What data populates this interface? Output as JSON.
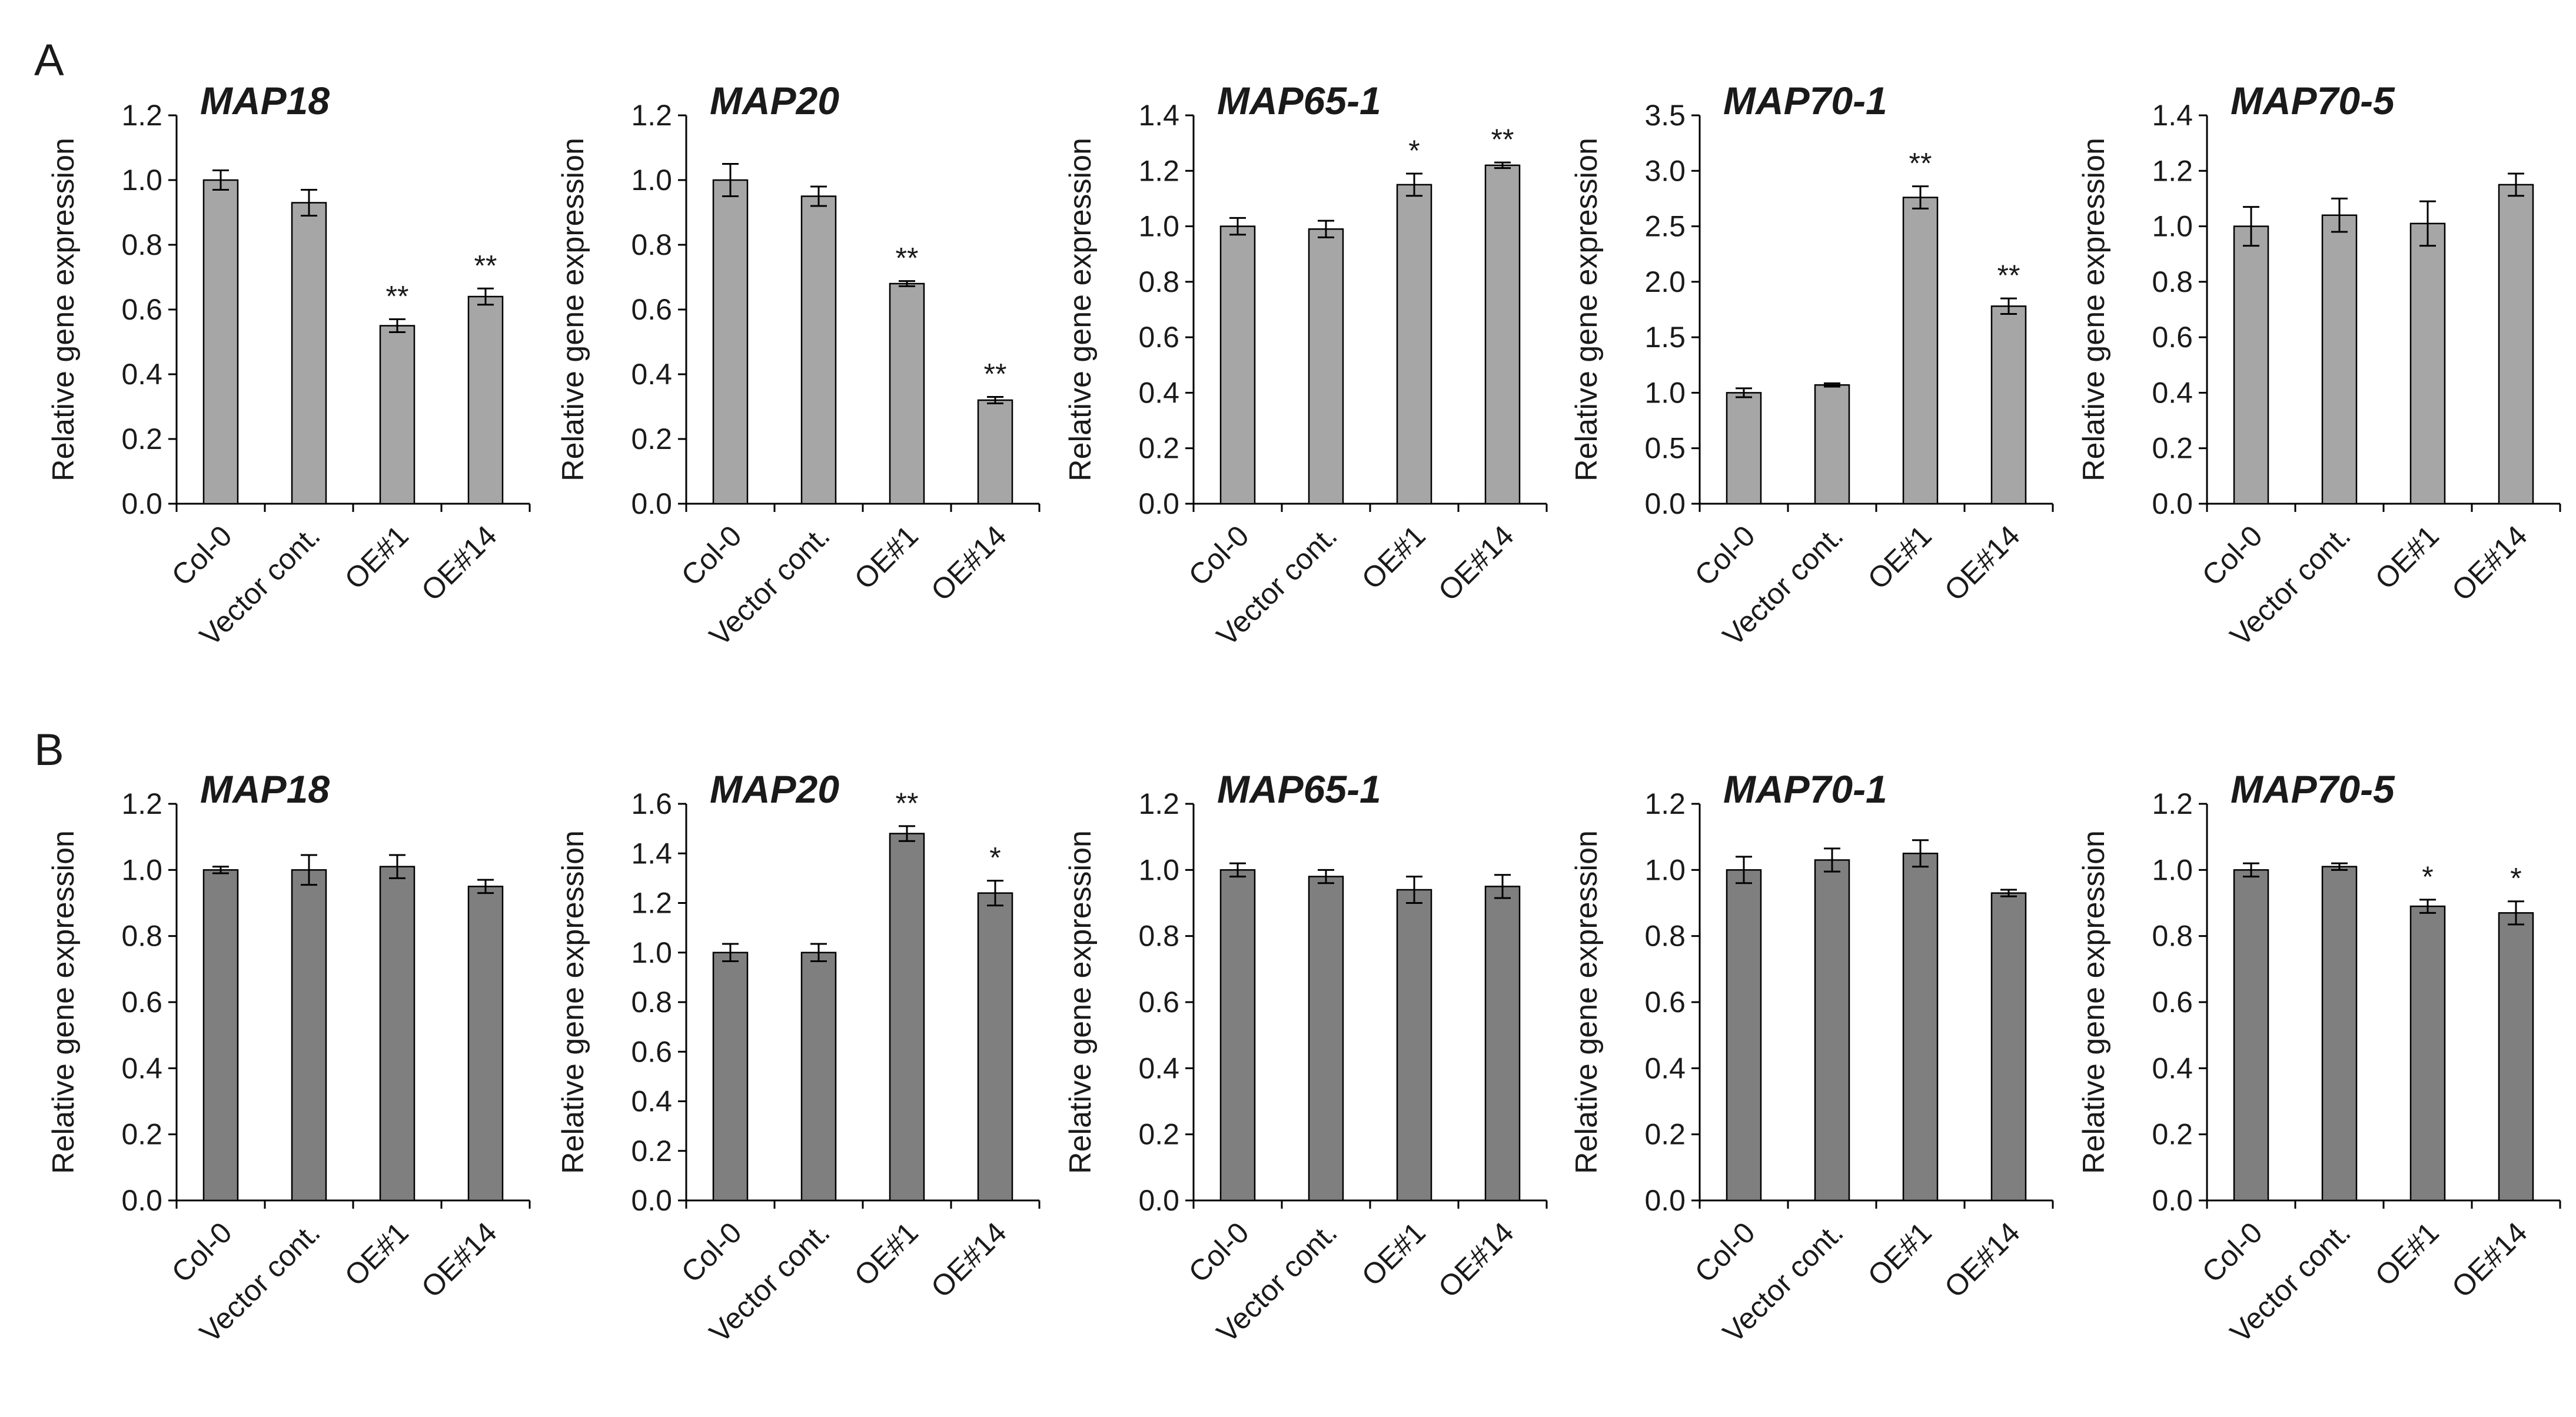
{
  "figure": {
    "panel_letters": [
      "A",
      "B"
    ]
  },
  "colors": {
    "bar_A": "#a6a6a6",
    "bar_B": "#7f7f7f",
    "axis": "#000000",
    "outline": "#000000"
  },
  "chart_data": [
    {
      "type": "bar",
      "panel": "A",
      "title": "MAP18",
      "ylabel": "Relative gene expression",
      "xlabel": "",
      "categories": [
        "Col-0",
        "Vector cont.",
        "OE#1",
        "OE#14"
      ],
      "values": [
        1.0,
        0.93,
        0.55,
        0.64
      ],
      "errors": [
        0.03,
        0.04,
        0.02,
        0.025
      ],
      "significance": [
        "",
        "",
        "**",
        "**"
      ],
      "ylim": [
        0,
        1.2
      ],
      "yticks": [
        "0.0",
        "0.2",
        "0.4",
        "0.6",
        "0.8",
        "1.0",
        "1.2"
      ]
    },
    {
      "type": "bar",
      "panel": "A",
      "title": "MAP20",
      "ylabel": "Relative gene expression",
      "xlabel": "",
      "categories": [
        "Col-0",
        "Vector cont.",
        "OE#1",
        "OE#14"
      ],
      "values": [
        1.0,
        0.95,
        0.68,
        0.32
      ],
      "errors": [
        0.05,
        0.03,
        0.008,
        0.01
      ],
      "significance": [
        "",
        "",
        "**",
        "**"
      ],
      "ylim": [
        0,
        1.2
      ],
      "yticks": [
        "0.0",
        "0.2",
        "0.4",
        "0.6",
        "0.8",
        "1.0",
        "1.2"
      ]
    },
    {
      "type": "bar",
      "panel": "A",
      "title": "MAP65-1",
      "ylabel": "Relative gene expression",
      "xlabel": "",
      "categories": [
        "Col-0",
        "Vector cont.",
        "OE#1",
        "OE#14"
      ],
      "values": [
        1.0,
        0.99,
        1.15,
        1.22
      ],
      "errors": [
        0.03,
        0.03,
        0.04,
        0.01
      ],
      "significance": [
        "",
        "",
        "*",
        "**"
      ],
      "ylim": [
        0,
        1.4
      ],
      "yticks": [
        "0.0",
        "0.2",
        "0.4",
        "0.6",
        "0.8",
        "1.0",
        "1.2",
        "1.4"
      ]
    },
    {
      "type": "bar",
      "panel": "A",
      "title": "MAP70-1",
      "ylabel": "Relative gene expression",
      "xlabel": "",
      "categories": [
        "Col-0",
        "Vector cont.",
        "OE#1",
        "OE#14"
      ],
      "values": [
        1.0,
        1.07,
        2.76,
        1.78
      ],
      "errors": [
        0.04,
        0.015,
        0.1,
        0.07
      ],
      "significance": [
        "",
        "",
        "**",
        "**"
      ],
      "ylim": [
        0,
        3.5
      ],
      "yticks": [
        "0.0",
        "0.5",
        "1.0",
        "1.5",
        "2.0",
        "2.5",
        "3.0",
        "3.5"
      ]
    },
    {
      "type": "bar",
      "panel": "A",
      "title": "MAP70-5",
      "ylabel": "Relative gene expression",
      "xlabel": "",
      "categories": [
        "Col-0",
        "Vector cont.",
        "OE#1",
        "OE#14"
      ],
      "values": [
        1.0,
        1.04,
        1.01,
        1.15
      ],
      "errors": [
        0.07,
        0.06,
        0.08,
        0.04
      ],
      "significance": [
        "",
        "",
        "",
        ""
      ],
      "ylim": [
        0,
        1.4
      ],
      "yticks": [
        "0.0",
        "0.2",
        "0.4",
        "0.6",
        "0.8",
        "1.0",
        "1.2",
        "1.4"
      ]
    },
    {
      "type": "bar",
      "panel": "B",
      "title": "MAP18",
      "ylabel": "Relative gene expression",
      "xlabel": "",
      "categories": [
        "Col-0",
        "Vector cont.",
        "OE#1",
        "OE#14"
      ],
      "values": [
        1.0,
        1.0,
        1.01,
        0.95
      ],
      "errors": [
        0.01,
        0.045,
        0.035,
        0.02
      ],
      "significance": [
        "",
        "",
        "",
        ""
      ],
      "ylim": [
        0,
        1.2
      ],
      "yticks": [
        "0.0",
        "0.2",
        "0.4",
        "0.6",
        "0.8",
        "1.0",
        "1.2"
      ]
    },
    {
      "type": "bar",
      "panel": "B",
      "title": "MAP20",
      "ylabel": "Relative gene expression",
      "xlabel": "",
      "categories": [
        "Col-0",
        "Vector cont.",
        "OE#1",
        "OE#14"
      ],
      "values": [
        1.0,
        1.0,
        1.48,
        1.24
      ],
      "errors": [
        0.035,
        0.035,
        0.03,
        0.05
      ],
      "significance": [
        "",
        "",
        "**",
        "*"
      ],
      "ylim": [
        0,
        1.6
      ],
      "yticks": [
        "0.0",
        "0.2",
        "0.4",
        "0.6",
        "0.8",
        "1.0",
        "1.2",
        "1.4",
        "1.6"
      ]
    },
    {
      "type": "bar",
      "panel": "B",
      "title": "MAP65-1",
      "ylabel": "Relative gene expression",
      "xlabel": "",
      "categories": [
        "Col-0",
        "Vector cont.",
        "OE#1",
        "OE#14"
      ],
      "values": [
        1.0,
        0.98,
        0.94,
        0.95
      ],
      "errors": [
        0.02,
        0.02,
        0.04,
        0.035
      ],
      "significance": [
        "",
        "",
        "",
        ""
      ],
      "ylim": [
        0,
        1.2
      ],
      "yticks": [
        "0.0",
        "0.2",
        "0.4",
        "0.6",
        "0.8",
        "1.0",
        "1.2"
      ]
    },
    {
      "type": "bar",
      "panel": "B",
      "title": "MAP70-1",
      "ylabel": "Relative gene expression",
      "xlabel": "",
      "categories": [
        "Col-0",
        "Vector cont.",
        "OE#1",
        "OE#14"
      ],
      "values": [
        1.0,
        1.03,
        1.05,
        0.93
      ],
      "errors": [
        0.04,
        0.035,
        0.04,
        0.01
      ],
      "significance": [
        "",
        "",
        "",
        ""
      ],
      "ylim": [
        0,
        1.2
      ],
      "yticks": [
        "0.0",
        "0.2",
        "0.4",
        "0.6",
        "0.8",
        "1.0",
        "1.2"
      ]
    },
    {
      "type": "bar",
      "panel": "B",
      "title": "MAP70-5",
      "ylabel": "Relative gene expression",
      "xlabel": "",
      "categories": [
        "Col-0",
        "Vector cont.",
        "OE#1",
        "OE#14"
      ],
      "values": [
        1.0,
        1.01,
        0.89,
        0.87
      ],
      "errors": [
        0.02,
        0.01,
        0.02,
        0.035
      ],
      "significance": [
        "",
        "",
        "*",
        "*"
      ],
      "ylim": [
        0,
        1.2
      ],
      "yticks": [
        "0.0",
        "0.2",
        "0.4",
        "0.6",
        "0.8",
        "1.0",
        "1.2"
      ]
    }
  ]
}
